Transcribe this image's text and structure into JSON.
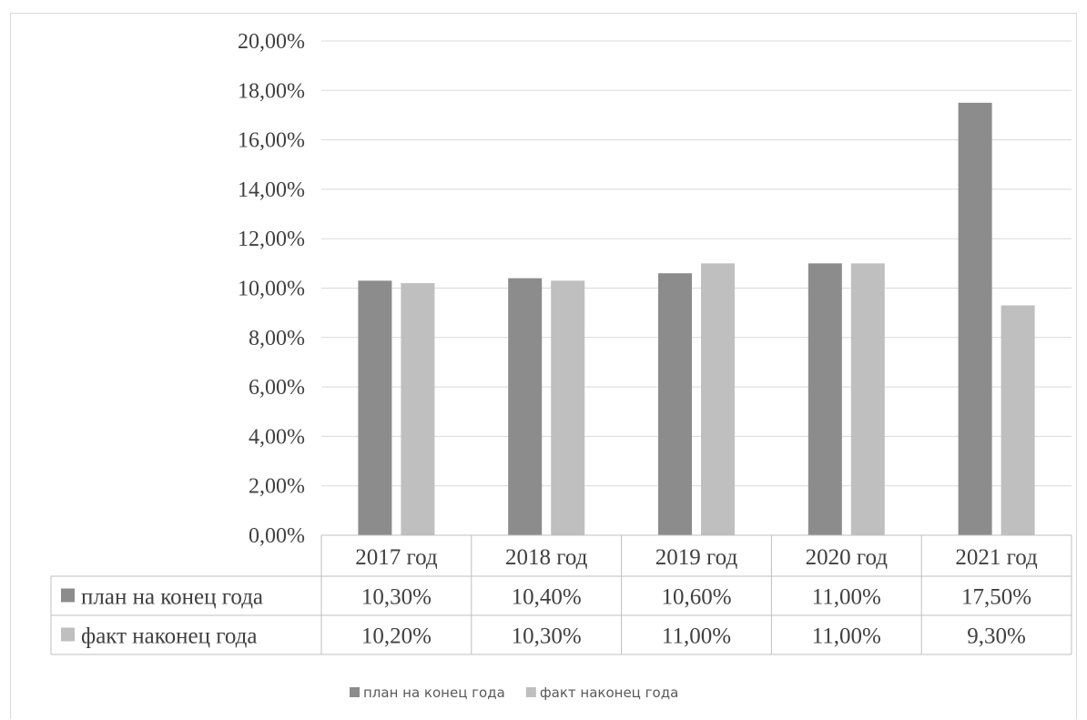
{
  "chart_data": {
    "type": "bar",
    "categories": [
      "2017 год",
      "2018 год",
      "2019 год",
      "2020 год",
      "2021 год"
    ],
    "series": [
      {
        "name": "план на конец года",
        "color": "#8c8c8c",
        "values": [
          10.3,
          10.4,
          10.6,
          11.0,
          17.5
        ],
        "labels": [
          "10,30%",
          "10,40%",
          "10,60%",
          "11,00%",
          "17,50%"
        ]
      },
      {
        "name": "факт наконец года",
        "color": "#bfbfbf",
        "values": [
          10.2,
          10.3,
          11.0,
          11.0,
          9.3
        ],
        "labels": [
          "10,20%",
          "10,30%",
          "11,00%",
          "11,00%",
          "9,30%"
        ]
      }
    ],
    "ylim": [
      0,
      20
    ],
    "yticks": [
      "0,00%",
      "2,00%",
      "4,00%",
      "6,00%",
      "8,00%",
      "10,00%",
      "12,00%",
      "14,00%",
      "16,00%",
      "18,00%",
      "20,00%"
    ],
    "grid": true,
    "legend": "bottom",
    "data_table": true,
    "title": "",
    "xlabel": "",
    "ylabel": ""
  }
}
